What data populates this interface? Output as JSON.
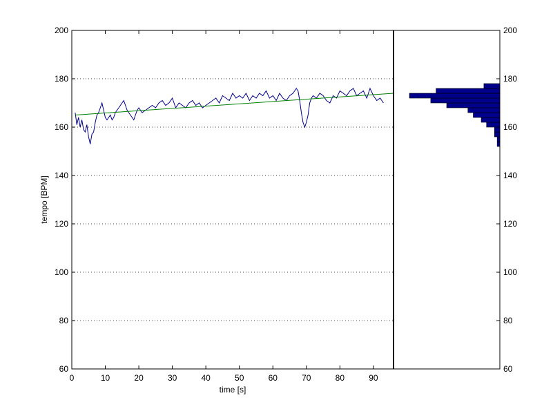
{
  "chart_data": [
    {
      "type": "line",
      "title": "",
      "xlabel": "time [s]",
      "ylabel": "tempo [BPM]",
      "xlim": [
        0,
        96
      ],
      "ylim": [
        60,
        200
      ],
      "x_ticks": [
        0,
        10,
        20,
        30,
        40,
        50,
        60,
        70,
        80,
        90
      ],
      "y_ticks": [
        60,
        80,
        100,
        120,
        140,
        160,
        180,
        200
      ],
      "grid": "horizontal dotted",
      "series": [
        {
          "name": "",
          "color": "#00008b",
          "x": [
            1,
            1.5,
            2,
            2.5,
            3,
            3.5,
            4,
            4.5,
            5,
            5.5,
            6,
            6.5,
            7,
            7.5,
            8,
            8.5,
            9,
            9.5,
            10,
            10.5,
            11,
            11.5,
            12,
            12.5,
            13,
            13.5,
            14,
            14.5,
            15,
            15.5,
            16,
            16.5,
            17,
            17.5,
            18,
            18.5,
            19,
            19.5,
            20,
            21,
            22,
            23,
            24,
            25,
            26,
            27,
            28,
            29,
            30,
            31,
            32,
            33,
            34,
            35,
            36,
            37,
            38,
            39,
            40,
            41,
            42,
            43,
            44,
            45,
            46,
            47,
            48,
            49,
            50,
            51,
            52,
            53,
            54,
            55,
            56,
            57,
            58,
            59,
            60,
            61,
            62,
            63,
            64,
            65,
            66,
            67,
            67.5,
            68,
            68.5,
            69,
            69.5,
            70,
            70.5,
            71,
            71.5,
            72,
            73,
            74,
            75,
            76,
            77,
            78,
            79,
            80,
            81,
            82,
            83,
            84,
            85,
            86,
            87,
            88,
            89,
            90,
            91,
            92,
            93
          ],
          "y": [
            166,
            161,
            164,
            160,
            163,
            159,
            158,
            161,
            156,
            153,
            157,
            158,
            162,
            165,
            166,
            168,
            170,
            167,
            164,
            163,
            164,
            165,
            163,
            164,
            166,
            167,
            168,
            169,
            170,
            171,
            169,
            167,
            166,
            165,
            164,
            163,
            165,
            167,
            168,
            166,
            167,
            168,
            169,
            168,
            170,
            171,
            169,
            170,
            172,
            168,
            170,
            169,
            168,
            170,
            171,
            169,
            170,
            168,
            169,
            170,
            171,
            172,
            170,
            173,
            172,
            171,
            174,
            172,
            173,
            172,
            174,
            171,
            173,
            172,
            174,
            173,
            175,
            172,
            173,
            171,
            174,
            172,
            171,
            173,
            174,
            176,
            175,
            171,
            166,
            162,
            160,
            162,
            165,
            170,
            172,
            173,
            172,
            174,
            173,
            171,
            170,
            173,
            172,
            175,
            174,
            173,
            175,
            176,
            173,
            174,
            175,
            172,
            176,
            173,
            171,
            172,
            170
          ]
        },
        {
          "name": "",
          "color": "#008000",
          "x": [
            1,
            96
          ],
          "y": [
            165,
            174
          ]
        }
      ]
    },
    {
      "type": "bar",
      "orientation": "horizontal",
      "title": "",
      "ylim": [
        60,
        200
      ],
      "y_ticks": [
        60,
        80,
        100,
        120,
        140,
        160,
        180,
        200
      ],
      "y_axis_side": "right",
      "xlim": [
        0,
        40
      ],
      "x_reversed": true,
      "bin_edges": [
        152,
        154,
        156,
        158,
        160,
        162,
        164,
        166,
        168,
        170,
        172,
        174,
        176,
        178
      ],
      "counts": [
        1,
        1,
        2,
        2,
        5,
        7,
        10,
        12,
        20,
        26,
        34,
        24,
        6
      ],
      "color": "#00008b"
    }
  ]
}
